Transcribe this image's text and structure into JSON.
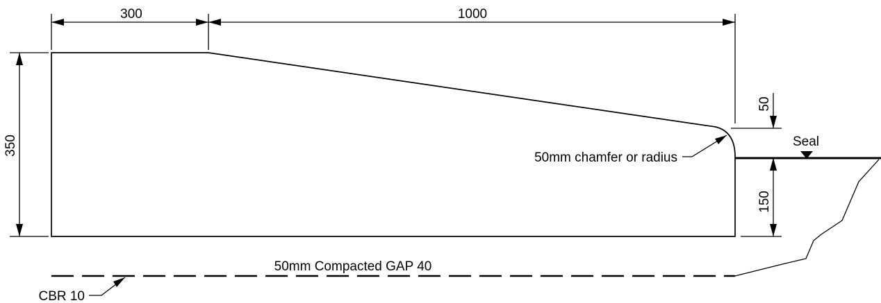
{
  "dimensions": {
    "top_left_width": "300",
    "slope_run": "1000",
    "total_height": "350",
    "edge_drop": "50",
    "face_height": "150"
  },
  "annotations": {
    "chamfer": "50mm chamfer or radius",
    "seal": "Seal",
    "basecourse": "50mm Compacted GAP 40",
    "subgrade": "CBR 10"
  }
}
